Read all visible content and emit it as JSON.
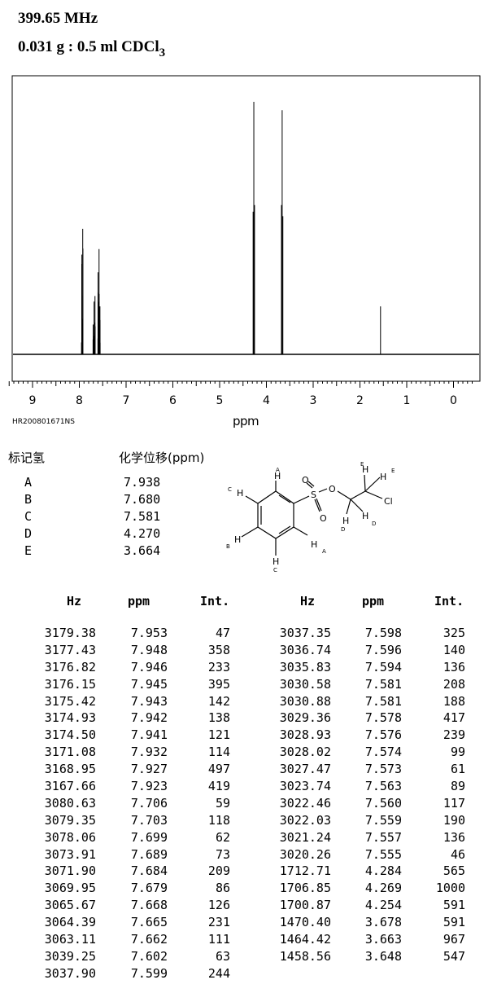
{
  "header": {
    "frequency": "399.65 MHz",
    "sample_main": "0.031 g : 0.5 ml CDCl",
    "sample_sub": "3"
  },
  "sample_id": "HR200801671NS",
  "chart_data": {
    "type": "line",
    "xlabel": "ppm",
    "xlim": [
      9.5,
      -0.5
    ],
    "x_ticks": [
      "9",
      "8",
      "7",
      "6",
      "5",
      "4",
      "3",
      "2",
      "1",
      "0"
    ],
    "peaks": [
      {
        "ppm": 7.953,
        "int": 47
      },
      {
        "ppm": 7.948,
        "int": 358
      },
      {
        "ppm": 7.946,
        "int": 233
      },
      {
        "ppm": 7.945,
        "int": 395
      },
      {
        "ppm": 7.943,
        "int": 142
      },
      {
        "ppm": 7.942,
        "int": 138
      },
      {
        "ppm": 7.941,
        "int": 121
      },
      {
        "ppm": 7.932,
        "int": 114
      },
      {
        "ppm": 7.927,
        "int": 497
      },
      {
        "ppm": 7.923,
        "int": 419
      },
      {
        "ppm": 7.706,
        "int": 59
      },
      {
        "ppm": 7.703,
        "int": 118
      },
      {
        "ppm": 7.699,
        "int": 62
      },
      {
        "ppm": 7.689,
        "int": 73
      },
      {
        "ppm": 7.684,
        "int": 209
      },
      {
        "ppm": 7.679,
        "int": 86
      },
      {
        "ppm": 7.668,
        "int": 126
      },
      {
        "ppm": 7.665,
        "int": 231
      },
      {
        "ppm": 7.662,
        "int": 111
      },
      {
        "ppm": 7.602,
        "int": 63
      },
      {
        "ppm": 7.599,
        "int": 244
      },
      {
        "ppm": 7.598,
        "int": 325
      },
      {
        "ppm": 7.596,
        "int": 140
      },
      {
        "ppm": 7.594,
        "int": 136
      },
      {
        "ppm": 7.581,
        "int": 208
      },
      {
        "ppm": 7.581,
        "int": 188
      },
      {
        "ppm": 7.578,
        "int": 417
      },
      {
        "ppm": 7.576,
        "int": 239
      },
      {
        "ppm": 7.574,
        "int": 99
      },
      {
        "ppm": 7.573,
        "int": 61
      },
      {
        "ppm": 7.563,
        "int": 89
      },
      {
        "ppm": 7.56,
        "int": 117
      },
      {
        "ppm": 7.559,
        "int": 190
      },
      {
        "ppm": 7.557,
        "int": 136
      },
      {
        "ppm": 7.555,
        "int": 46
      },
      {
        "ppm": 4.284,
        "int": 565
      },
      {
        "ppm": 4.269,
        "int": 1000
      },
      {
        "ppm": 4.254,
        "int": 591
      },
      {
        "ppm": 3.678,
        "int": 591
      },
      {
        "ppm": 3.663,
        "int": 967
      },
      {
        "ppm": 3.648,
        "int": 547
      },
      {
        "ppm": 1.56,
        "int": 190
      }
    ]
  },
  "assignment": {
    "label_header": "标记氢",
    "shift_header": "化学位移(ppm)",
    "rows": [
      {
        "label": "A",
        "shift": "7.938"
      },
      {
        "label": "B",
        "shift": "7.680"
      },
      {
        "label": "C",
        "shift": "7.581"
      },
      {
        "label": "D",
        "shift": "4.270"
      },
      {
        "label": "E",
        "shift": "3.664"
      }
    ]
  },
  "molecule": {
    "atoms": [
      "S",
      "O",
      "O",
      "O",
      "Cl",
      "H",
      "H",
      "H",
      "H",
      "H",
      "H",
      "H",
      "H",
      "H"
    ],
    "labels": [
      "A",
      "C",
      "B",
      "C",
      "A",
      "E",
      "E",
      "D",
      "D"
    ]
  },
  "peak_table": {
    "headers": [
      "Hz",
      "ppm",
      "Int."
    ],
    "left": [
      [
        "3179.38",
        "7.953",
        "47"
      ],
      [
        "3177.43",
        "7.948",
        "358"
      ],
      [
        "3176.82",
        "7.946",
        "233"
      ],
      [
        "3176.15",
        "7.945",
        "395"
      ],
      [
        "3175.42",
        "7.943",
        "142"
      ],
      [
        "3174.93",
        "7.942",
        "138"
      ],
      [
        "3174.50",
        "7.941",
        "121"
      ],
      [
        "3171.08",
        "7.932",
        "114"
      ],
      [
        "3168.95",
        "7.927",
        "497"
      ],
      [
        "3167.66",
        "7.923",
        "419"
      ],
      [
        "3080.63",
        "7.706",
        "59"
      ],
      [
        "3079.35",
        "7.703",
        "118"
      ],
      [
        "3078.06",
        "7.699",
        "62"
      ],
      [
        "3073.91",
        "7.689",
        "73"
      ],
      [
        "3071.90",
        "7.684",
        "209"
      ],
      [
        "3069.95",
        "7.679",
        "86"
      ],
      [
        "3065.67",
        "7.668",
        "126"
      ],
      [
        "3064.39",
        "7.665",
        "231"
      ],
      [
        "3063.11",
        "7.662",
        "111"
      ],
      [
        "3039.25",
        "7.602",
        "63"
      ],
      [
        "3037.90",
        "7.599",
        "244"
      ]
    ],
    "right": [
      [
        "3037.35",
        "7.598",
        "325"
      ],
      [
        "3036.74",
        "7.596",
        "140"
      ],
      [
        "3035.83",
        "7.594",
        "136"
      ],
      [
        "3030.58",
        "7.581",
        "208"
      ],
      [
        "3030.88",
        "7.581",
        "188"
      ],
      [
        "3029.36",
        "7.578",
        "417"
      ],
      [
        "3028.93",
        "7.576",
        "239"
      ],
      [
        "3028.02",
        "7.574",
        "99"
      ],
      [
        "3027.47",
        "7.573",
        "61"
      ],
      [
        "3023.74",
        "7.563",
        "89"
      ],
      [
        "3022.46",
        "7.560",
        "117"
      ],
      [
        "3022.03",
        "7.559",
        "190"
      ],
      [
        "3021.24",
        "7.557",
        "136"
      ],
      [
        "3020.26",
        "7.555",
        "46"
      ],
      [
        "1712.71",
        "4.284",
        "565"
      ],
      [
        "1706.85",
        "4.269",
        "1000"
      ],
      [
        "1700.87",
        "4.254",
        "591"
      ],
      [
        "1470.40",
        "3.678",
        "591"
      ],
      [
        "1464.42",
        "3.663",
        "967"
      ],
      [
        "1458.56",
        "3.648",
        "547"
      ]
    ]
  }
}
